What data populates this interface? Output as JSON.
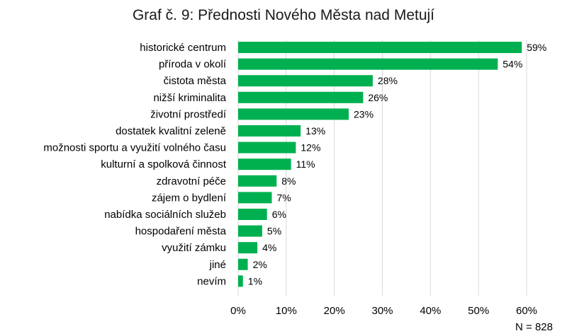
{
  "chart_data": {
    "type": "bar",
    "orientation": "horizontal",
    "title": "Graf č. 9: Přednosti Nového Města nad Metují",
    "categories": [
      "historické centrum",
      "příroda v okolí",
      "čistota města",
      "nižší kriminalita",
      "životní prostředí",
      "dostatek kvalitní zeleně",
      "možnosti sportu a využití volného času",
      "kulturní a spolková činnost",
      "zdravotní péče",
      "zájem o bydlení",
      "nabídka sociálních služeb",
      "hospodaření města",
      "využití zámku",
      "jiné",
      "nevím"
    ],
    "values": [
      59,
      54,
      28,
      26,
      23,
      13,
      12,
      11,
      8,
      7,
      6,
      5,
      4,
      2,
      1
    ],
    "value_labels": [
      "59%",
      "54%",
      "28%",
      "26%",
      "23%",
      "13%",
      "12%",
      "11%",
      "8%",
      "7%",
      "6%",
      "5%",
      "4%",
      "2%",
      "1%"
    ],
    "xlim": [
      0,
      60
    ],
    "x_ticks": [
      0,
      10,
      20,
      30,
      40,
      50,
      60
    ],
    "x_tick_labels": [
      "0%",
      "10%",
      "20%",
      "30%",
      "40%",
      "50%",
      "60%"
    ],
    "grid": true,
    "bar_color": "#00b050",
    "grid_color": "#d9d9d9",
    "footnote": "N = 828"
  }
}
